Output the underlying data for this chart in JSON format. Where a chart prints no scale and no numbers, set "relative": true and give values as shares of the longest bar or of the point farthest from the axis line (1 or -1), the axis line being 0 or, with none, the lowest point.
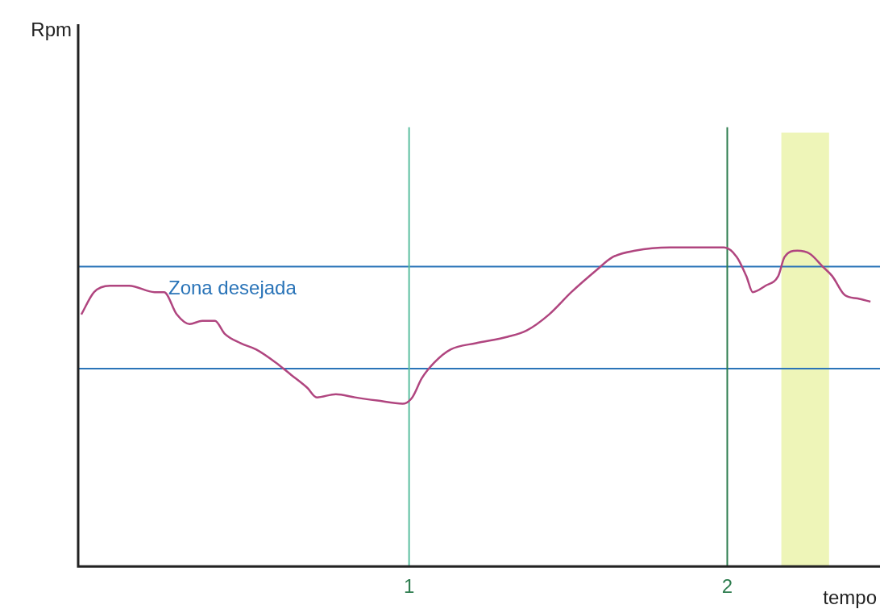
{
  "chart_data": {
    "type": "line",
    "relative": true,
    "xlabel": "tempo",
    "xlim": [
      -0.04,
      2.48
    ],
    "xticks": [
      1,
      2
    ],
    "grid": false,
    "legend": false,
    "marker": "none",
    "line_style": "solid",
    "x": [
      -0.03,
      0.01,
      0.06,
      0.12,
      0.2,
      0.23,
      0.27,
      0.31,
      0.35,
      0.39,
      0.42,
      0.47,
      0.52,
      0.58,
      0.63,
      0.68,
      0.71,
      0.77,
      0.83,
      0.9,
      0.98,
      1.01,
      1.04,
      1.08,
      1.13,
      1.21,
      1.31,
      1.37,
      1.44,
      1.51,
      1.59,
      1.64,
      1.71,
      1.82,
      1.92,
      1.99,
      2.03,
      2.06,
      2.08,
      2.12,
      2.16,
      2.18,
      2.22,
      2.26,
      2.3,
      2.33,
      2.37,
      2.41,
      2.45
    ],
    "series": [
      {
        "color": "#b0457f",
        "values": [
          0.79,
          0.86,
          0.88,
          0.88,
          0.86,
          0.86,
          0.79,
          0.76,
          0.77,
          0.77,
          0.73,
          0.7,
          0.68,
          0.64,
          0.6,
          0.56,
          0.53,
          0.54,
          0.53,
          0.52,
          0.51,
          0.53,
          0.59,
          0.64,
          0.68,
          0.7,
          0.72,
          0.74,
          0.79,
          0.86,
          0.93,
          0.97,
          0.99,
          1.0,
          1.0,
          1.0,
          0.97,
          0.91,
          0.86,
          0.88,
          0.91,
          0.97,
          0.99,
          0.98,
          0.94,
          0.91,
          0.85,
          0.84,
          0.83
        ]
      }
    ],
    "ref_lines": [
      {
        "axis": "y",
        "value": 0.94,
        "color": "#2a74b8"
      },
      {
        "axis": "y",
        "value": 0.62,
        "color": "#2a74b8"
      },
      {
        "axis": "x",
        "value": 1,
        "color": "#5cbfa0"
      },
      {
        "axis": "x",
        "value": 2,
        "color": "#2e7d4f"
      }
    ],
    "bands": [
      {
        "axis": "x",
        "from": 2.17,
        "to": 2.32,
        "color": "#eef5b8"
      }
    ],
    "annotations": [
      "Rpm",
      "Zona desejada"
    ]
  }
}
